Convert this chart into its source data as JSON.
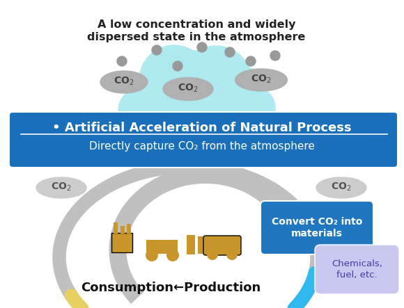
{
  "bg_color": "#ffffff",
  "cloud_color": "#aeeaf0",
  "cloud_outline": "#aeeaf0",
  "co2_ellipse_color": "#b0b0b0",
  "co2_text_color": "#555555",
  "blue_banner_color": "#1a6fba",
  "blue_banner_text1": "• Artificial Acceleration of Natural Process",
  "blue_banner_text2": "Directly capture CO₂ from the atmosphere",
  "convert_box_color": "#2176c0",
  "convert_box_text": "Convert CO₂ into\nmaterials",
  "chemicals_box_color": "#c8c8f0",
  "chemicals_box_text": "Chemicals,\nfuel, etc.",
  "bottom_text": "Consumption←Production",
  "cloud_title_line1": "A low concentration and widely",
  "cloud_title_line2": "dispersed state in the atmosphere",
  "arrow_gray": "#c0c0c0",
  "arrow_blue": "#00aaee",
  "arrow_yellow": "#e8c840",
  "golden_color": "#c8962a"
}
